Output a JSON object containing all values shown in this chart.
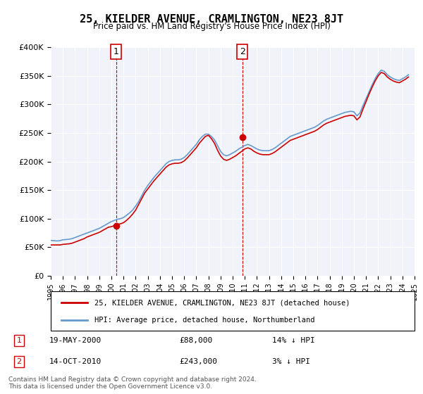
{
  "title": "25, KIELDER AVENUE, CRAMLINGTON, NE23 8JT",
  "subtitle": "Price paid vs. HM Land Registry's House Price Index (HPI)",
  "legend_line1": "25, KIELDER AVENUE, CRAMLINGTON, NE23 8JT (detached house)",
  "legend_line2": "HPI: Average price, detached house, Northumberland",
  "annotation1_label": "1",
  "annotation1_date": "19-MAY-2000",
  "annotation1_price": "£88,000",
  "annotation1_hpi": "14% ↓ HPI",
  "annotation1_year": 2000.38,
  "annotation1_value": 88000,
  "annotation2_label": "2",
  "annotation2_date": "14-OCT-2010",
  "annotation2_price": "£243,000",
  "annotation2_hpi": "3% ↓ HPI",
  "annotation2_year": 2010.79,
  "annotation2_value": 243000,
  "footer": "Contains HM Land Registry data © Crown copyright and database right 2024.\nThis data is licensed under the Open Government Licence v3.0.",
  "ylim": [
    0,
    400000
  ],
  "yticks": [
    0,
    50000,
    100000,
    150000,
    200000,
    250000,
    300000,
    350000,
    400000
  ],
  "red_color": "#cc0000",
  "blue_color": "#6699cc",
  "background_color": "#e8f0f8",
  "plot_bg_color": "#f0f4fa",
  "hpi_data": {
    "years": [
      1995.0,
      1995.25,
      1995.5,
      1995.75,
      1996.0,
      1996.25,
      1996.5,
      1996.75,
      1997.0,
      1997.25,
      1997.5,
      1997.75,
      1998.0,
      1998.25,
      1998.5,
      1998.75,
      1999.0,
      1999.25,
      1999.5,
      1999.75,
      2000.0,
      2000.25,
      2000.5,
      2000.75,
      2001.0,
      2001.25,
      2001.5,
      2001.75,
      2002.0,
      2002.25,
      2002.5,
      2002.75,
      2003.0,
      2003.25,
      2003.5,
      2003.75,
      2004.0,
      2004.25,
      2004.5,
      2004.75,
      2005.0,
      2005.25,
      2005.5,
      2005.75,
      2006.0,
      2006.25,
      2006.5,
      2006.75,
      2007.0,
      2007.25,
      2007.5,
      2007.75,
      2008.0,
      2008.25,
      2008.5,
      2008.75,
      2009.0,
      2009.25,
      2009.5,
      2009.75,
      2010.0,
      2010.25,
      2010.5,
      2010.75,
      2011.0,
      2011.25,
      2011.5,
      2011.75,
      2012.0,
      2012.25,
      2012.5,
      2012.75,
      2013.0,
      2013.25,
      2013.5,
      2013.75,
      2014.0,
      2014.25,
      2014.5,
      2014.75,
      2015.0,
      2015.25,
      2015.5,
      2015.75,
      2016.0,
      2016.25,
      2016.5,
      2016.75,
      2017.0,
      2017.25,
      2017.5,
      2017.75,
      2018.0,
      2018.25,
      2018.5,
      2018.75,
      2019.0,
      2019.25,
      2019.5,
      2019.75,
      2020.0,
      2020.25,
      2020.5,
      2020.75,
      2021.0,
      2021.25,
      2021.5,
      2021.75,
      2022.0,
      2022.25,
      2022.5,
      2022.75,
      2023.0,
      2023.25,
      2023.5,
      2023.75,
      2024.0,
      2024.25,
      2024.5
    ],
    "values": [
      62000,
      61500,
      61000,
      61500,
      63000,
      63500,
      64000,
      65000,
      67000,
      69000,
      71000,
      73000,
      75000,
      77000,
      79000,
      81000,
      83000,
      86000,
      89000,
      92000,
      95000,
      97000,
      99000,
      100000,
      102000,
      106000,
      110000,
      115000,
      122000,
      130000,
      140000,
      150000,
      158000,
      165000,
      172000,
      178000,
      184000,
      190000,
      196000,
      200000,
      202000,
      203000,
      203000,
      204000,
      207000,
      212000,
      218000,
      224000,
      230000,
      238000,
      244000,
      248000,
      248000,
      244000,
      238000,
      228000,
      218000,
      212000,
      210000,
      212000,
      215000,
      218000,
      222000,
      225000,
      228000,
      230000,
      228000,
      225000,
      222000,
      220000,
      219000,
      219000,
      219000,
      221000,
      224000,
      228000,
      232000,
      236000,
      240000,
      244000,
      246000,
      248000,
      250000,
      252000,
      254000,
      256000,
      258000,
      260000,
      263000,
      267000,
      271000,
      274000,
      276000,
      278000,
      280000,
      282000,
      284000,
      286000,
      287000,
      288000,
      287000,
      280000,
      285000,
      298000,
      310000,
      322000,
      334000,
      345000,
      354000,
      360000,
      358000,
      352000,
      348000,
      345000,
      343000,
      342000,
      345000,
      348000,
      352000
    ]
  },
  "price_data": {
    "years": [
      1995.0,
      1995.25,
      1995.5,
      1995.75,
      1996.0,
      1996.25,
      1996.5,
      1996.75,
      1997.0,
      1997.25,
      1997.5,
      1997.75,
      1998.0,
      1998.25,
      1998.5,
      1998.75,
      1999.0,
      1999.25,
      1999.5,
      1999.75,
      2000.0,
      2000.25,
      2000.5,
      2000.75,
      2001.0,
      2001.25,
      2001.5,
      2001.75,
      2002.0,
      2002.25,
      2002.5,
      2002.75,
      2003.0,
      2003.25,
      2003.5,
      2003.75,
      2004.0,
      2004.25,
      2004.5,
      2004.75,
      2005.0,
      2005.25,
      2005.5,
      2005.75,
      2006.0,
      2006.25,
      2006.5,
      2006.75,
      2007.0,
      2007.25,
      2007.5,
      2007.75,
      2008.0,
      2008.25,
      2008.5,
      2008.75,
      2009.0,
      2009.25,
      2009.5,
      2009.75,
      2010.0,
      2010.25,
      2010.5,
      2010.75,
      2011.0,
      2011.25,
      2011.5,
      2011.75,
      2012.0,
      2012.25,
      2012.5,
      2012.75,
      2013.0,
      2013.25,
      2013.5,
      2013.75,
      2014.0,
      2014.25,
      2014.5,
      2014.75,
      2015.0,
      2015.25,
      2015.5,
      2015.75,
      2016.0,
      2016.25,
      2016.5,
      2016.75,
      2017.0,
      2017.25,
      2017.5,
      2017.75,
      2018.0,
      2018.25,
      2018.5,
      2018.75,
      2019.0,
      2019.25,
      2019.5,
      2019.75,
      2020.0,
      2020.25,
      2020.5,
      2020.75,
      2021.0,
      2021.25,
      2021.5,
      2021.75,
      2022.0,
      2022.25,
      2022.5,
      2022.75,
      2023.0,
      2023.25,
      2023.5,
      2023.75,
      2024.0,
      2024.25,
      2024.5
    ],
    "values": [
      54000,
      54000,
      54000,
      54000,
      55000,
      55500,
      56000,
      57000,
      59000,
      61000,
      63000,
      65000,
      68000,
      70000,
      72000,
      74000,
      76000,
      79000,
      82000,
      85000,
      86000,
      88000,
      90000,
      91000,
      93000,
      97000,
      102000,
      108000,
      115000,
      125000,
      135000,
      145000,
      152000,
      159000,
      166000,
      172000,
      178000,
      184000,
      190000,
      194000,
      196000,
      197000,
      197000,
      198000,
      201000,
      206000,
      212000,
      218000,
      224000,
      232000,
      238000,
      244000,
      246000,
      240000,
      232000,
      220000,
      210000,
      204000,
      202000,
      204000,
      207000,
      210000,
      214000,
      218000,
      222000,
      224000,
      222000,
      218000,
      215000,
      213000,
      212000,
      212000,
      212000,
      214000,
      217000,
      221000,
      225000,
      229000,
      233000,
      237000,
      239000,
      241000,
      243000,
      245000,
      247000,
      249000,
      251000,
      253000,
      256000,
      260000,
      264000,
      267000,
      269000,
      271000,
      273000,
      275000,
      277000,
      279000,
      280000,
      281000,
      280000,
      273000,
      278000,
      292000,
      305000,
      318000,
      330000,
      341000,
      350000,
      356000,
      354000,
      348000,
      344000,
      341000,
      339000,
      338000,
      341000,
      344000,
      348000
    ]
  }
}
